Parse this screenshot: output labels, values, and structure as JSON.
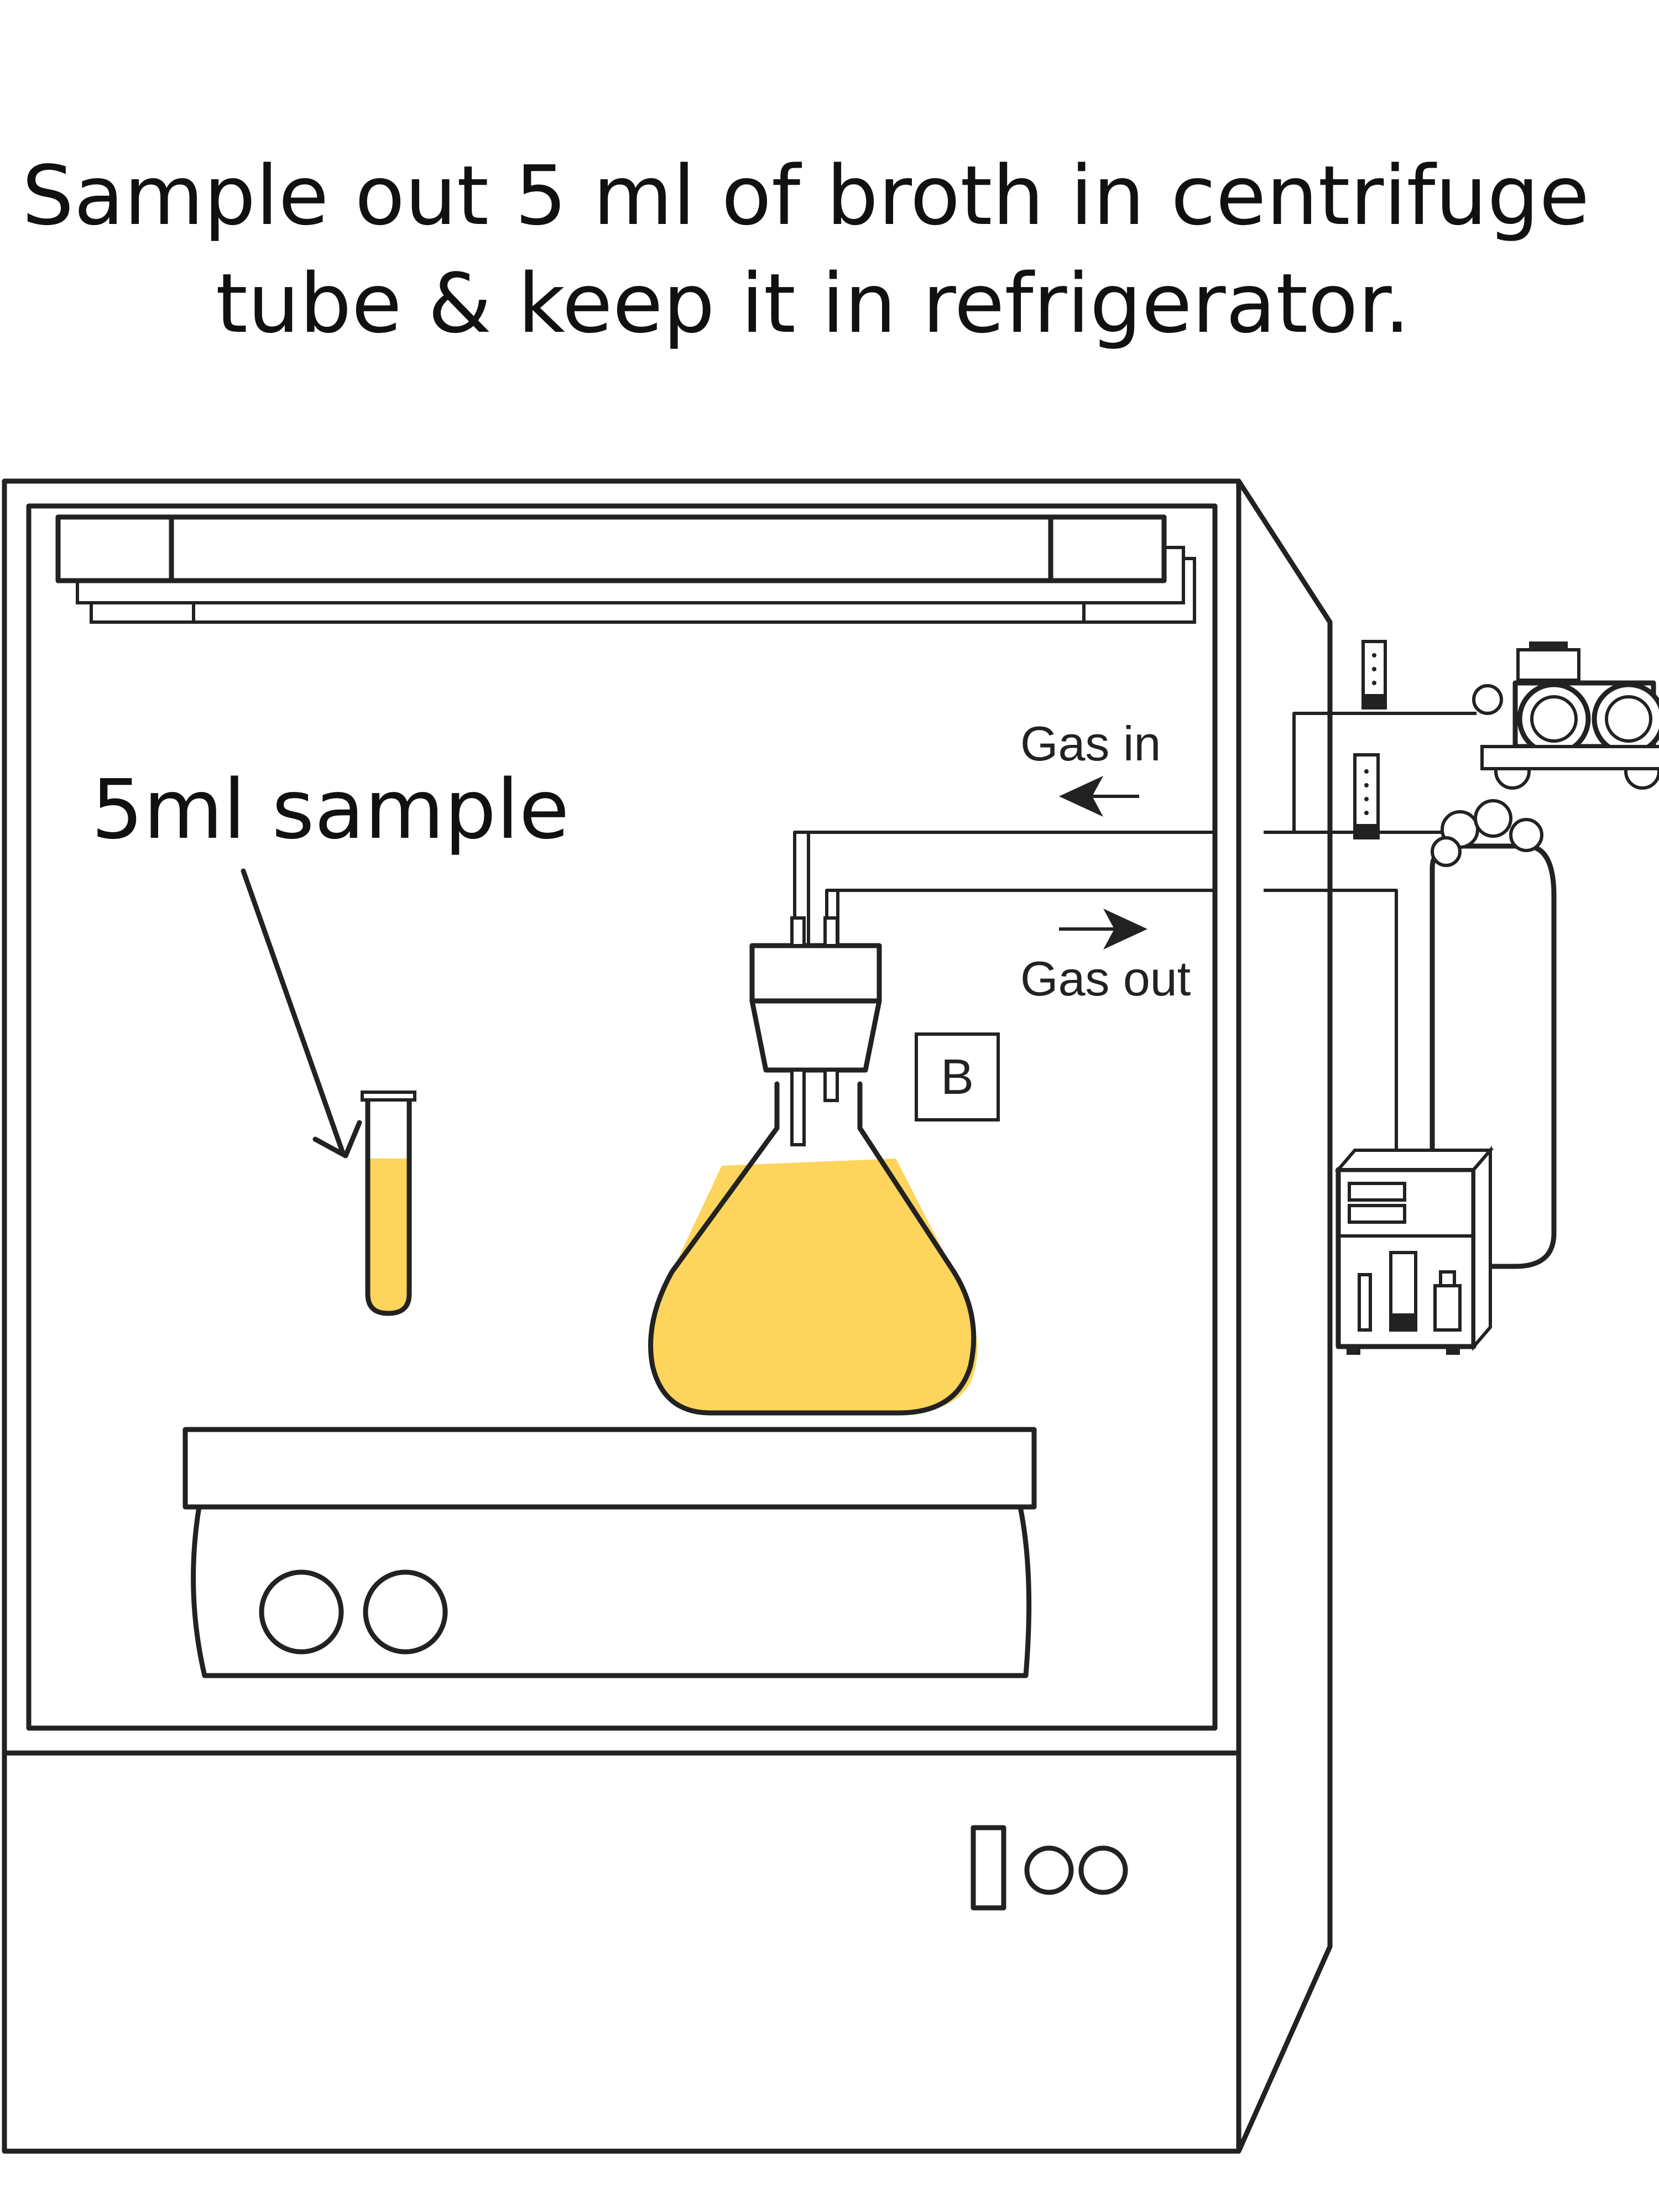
{
  "title": {
    "line1": "Sample out 5 ml of broth in centrifuge",
    "line2": "tube & keep it in refrigerator."
  },
  "labels": {
    "sample": "5ml sample",
    "gas_in": "Gas in",
    "gas_out": "Gas out",
    "flask_tag": "B"
  },
  "colors": {
    "broth": "#fdd45c",
    "line": "#222222",
    "background": "#ffffff"
  }
}
